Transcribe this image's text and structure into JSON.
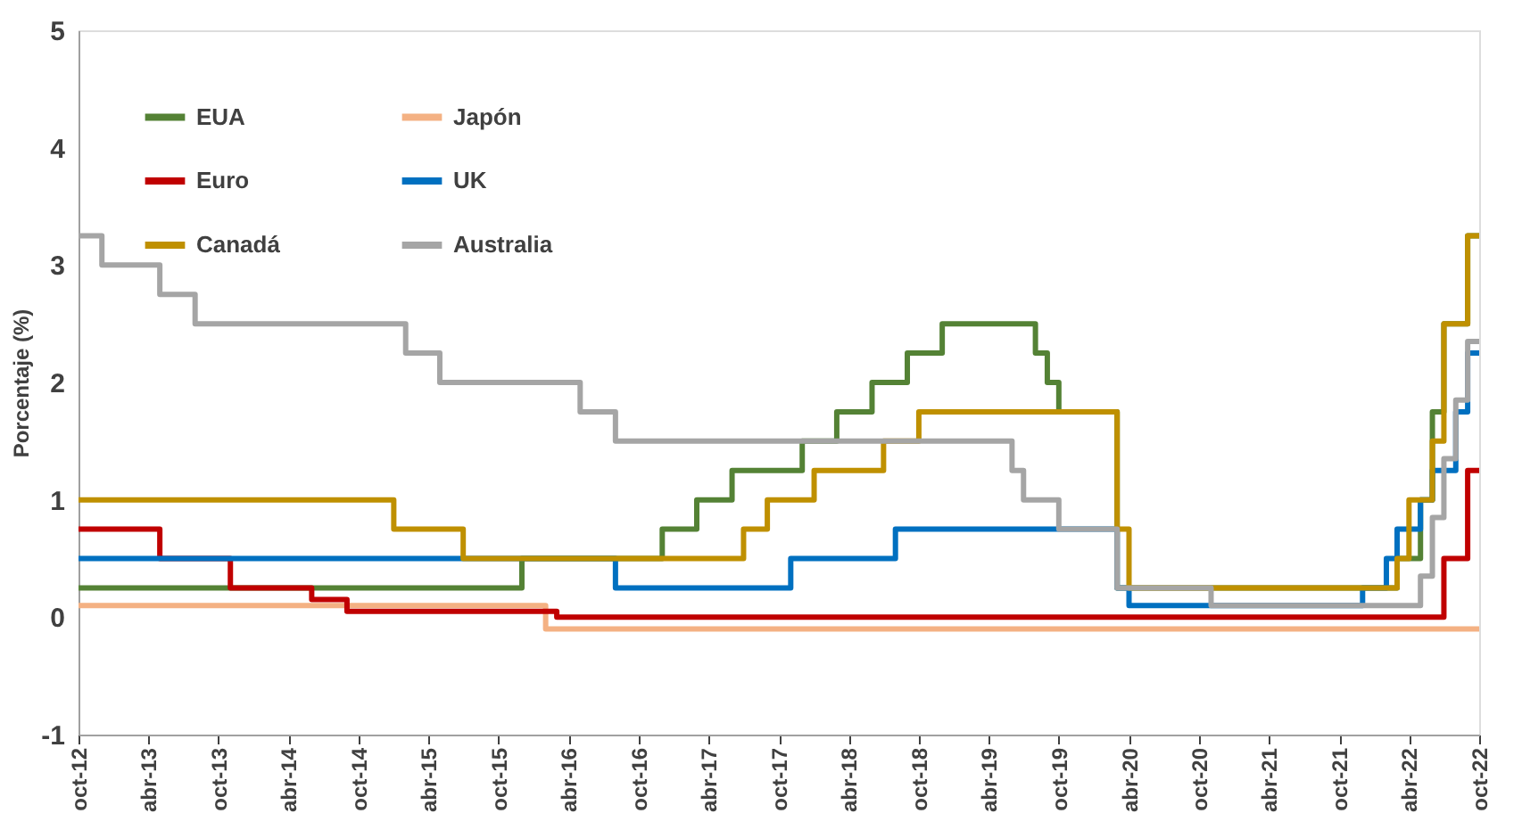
{
  "chart_data": {
    "type": "step",
    "ylabel": "Porcentaje (%)",
    "ylim": [
      -1,
      5
    ],
    "yticks": [
      -1,
      0,
      1,
      2,
      3,
      4,
      5
    ],
    "xlim": [
      "2012-10",
      "2022-10"
    ],
    "xticks": [
      {
        "value": "2012-10",
        "label": "oct-12"
      },
      {
        "value": "2013-04",
        "label": "abr-13"
      },
      {
        "value": "2013-10",
        "label": "oct-13"
      },
      {
        "value": "2014-04",
        "label": "abr-14"
      },
      {
        "value": "2014-10",
        "label": "oct-14"
      },
      {
        "value": "2015-04",
        "label": "abr-15"
      },
      {
        "value": "2015-10",
        "label": "oct-15"
      },
      {
        "value": "2016-04",
        "label": "abr-16"
      },
      {
        "value": "2016-10",
        "label": "oct-16"
      },
      {
        "value": "2017-04",
        "label": "abr-17"
      },
      {
        "value": "2017-10",
        "label": "oct-17"
      },
      {
        "value": "2018-04",
        "label": "abr-18"
      },
      {
        "value": "2018-10",
        "label": "oct-18"
      },
      {
        "value": "2019-04",
        "label": "abr-19"
      },
      {
        "value": "2019-10",
        "label": "oct-19"
      },
      {
        "value": "2020-04",
        "label": "abr-20"
      },
      {
        "value": "2020-10",
        "label": "oct-20"
      },
      {
        "value": "2021-04",
        "label": "abr-21"
      },
      {
        "value": "2021-10",
        "label": "oct-21"
      },
      {
        "value": "2022-04",
        "label": "abr-22"
      },
      {
        "value": "2022-10",
        "label": "oct-22"
      }
    ],
    "grid": false,
    "legend": "top left",
    "marker": "none",
    "line_style": "solid",
    "series": [
      {
        "name": "EUA",
        "color": "#548235",
        "x": [
          "2012-10",
          "2015-12",
          "2016-12",
          "2017-03",
          "2017-06",
          "2017-12",
          "2018-03",
          "2018-06",
          "2018-09",
          "2018-12",
          "2019-08",
          "2019-09",
          "2019-10",
          "2020-03",
          "2022-03",
          "2022-05",
          "2022-06",
          "2022-07",
          "2022-09",
          "2022-10"
        ],
        "values": [
          0.25,
          0.5,
          0.75,
          1.0,
          1.25,
          1.5,
          1.75,
          2.0,
          2.25,
          2.5,
          2.25,
          2.0,
          1.75,
          0.25,
          0.5,
          1.0,
          1.75,
          2.5,
          3.25,
          3.25
        ]
      },
      {
        "name": "Japón",
        "color": "#f4b183",
        "x": [
          "2012-10",
          "2016-02",
          "2022-10"
        ],
        "values": [
          0.1,
          -0.1,
          -0.1
        ]
      },
      {
        "name": "Euro",
        "color": "#c00000",
        "x": [
          "2012-10",
          "2013-05",
          "2013-11",
          "2014-06",
          "2014-09",
          "2016-03",
          "2022-07",
          "2022-09",
          "2022-10"
        ],
        "values": [
          0.75,
          0.5,
          0.25,
          0.15,
          0.05,
          0.0,
          0.5,
          1.25,
          1.25
        ]
      },
      {
        "name": "UK",
        "color": "#0070c0",
        "x": [
          "2012-10",
          "2016-08",
          "2017-11",
          "2018-08",
          "2020-03",
          "2020-04",
          "2021-12",
          "2022-02",
          "2022-03",
          "2022-05",
          "2022-06",
          "2022-08",
          "2022-09",
          "2022-10"
        ],
        "values": [
          0.5,
          0.25,
          0.5,
          0.75,
          0.25,
          0.1,
          0.25,
          0.5,
          0.75,
          1.0,
          1.25,
          1.75,
          2.25,
          2.25
        ]
      },
      {
        "name": "Canadá",
        "color": "#bf9000",
        "x": [
          "2012-10",
          "2015-01",
          "2015-07",
          "2017-07",
          "2017-09",
          "2018-01",
          "2018-07",
          "2018-10",
          "2020-03",
          "2020-04",
          "2022-03",
          "2022-04",
          "2022-06",
          "2022-07",
          "2022-09",
          "2022-10"
        ],
        "values": [
          1.0,
          0.75,
          0.5,
          0.75,
          1.0,
          1.25,
          1.5,
          1.75,
          0.75,
          0.25,
          0.5,
          1.0,
          1.5,
          2.5,
          3.25,
          3.25
        ]
      },
      {
        "name": "Australia",
        "color": "#a5a5a5",
        "x": [
          "2012-10",
          "2012-12",
          "2013-05",
          "2013-08",
          "2015-02",
          "2015-05",
          "2016-05",
          "2016-08",
          "2019-06",
          "2019-07",
          "2019-10",
          "2020-03",
          "2020-11",
          "2022-05",
          "2022-06",
          "2022-07",
          "2022-08",
          "2022-09",
          "2022-10"
        ],
        "values": [
          3.25,
          3.0,
          2.75,
          2.5,
          2.25,
          2.0,
          1.75,
          1.5,
          1.25,
          1.0,
          0.75,
          0.25,
          0.1,
          0.35,
          0.85,
          1.35,
          1.85,
          2.35,
          2.35
        ]
      }
    ]
  }
}
